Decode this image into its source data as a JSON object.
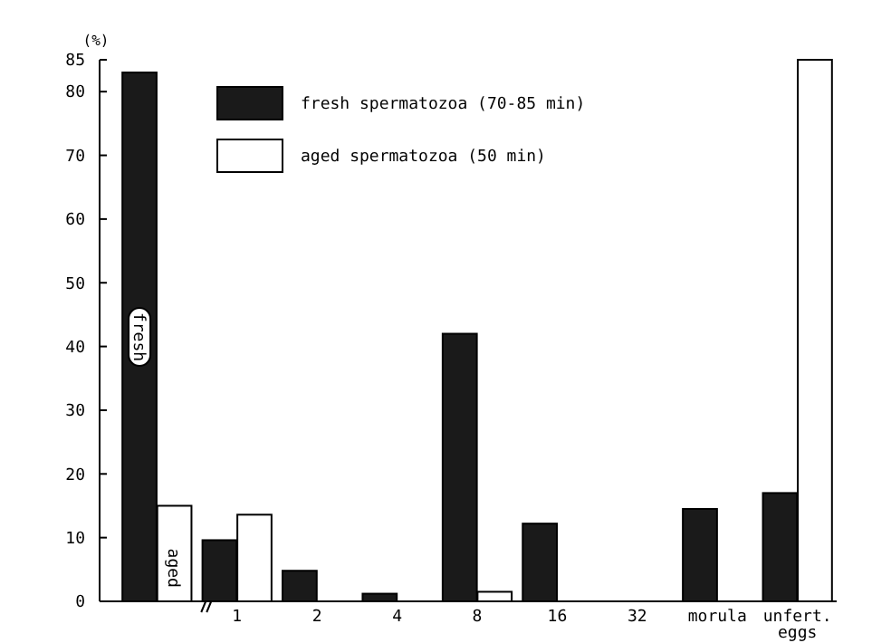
{
  "chart_data": {
    "type": "bar",
    "ylabel": "(%)",
    "categories": [
      null,
      "1",
      "2",
      "4",
      "8",
      "16",
      "32",
      "morula",
      "unfert. eggs"
    ],
    "series": [
      {
        "name": "fresh spermatozoa (70-85 min)",
        "color": "#1a1a1a",
        "values": [
          83,
          9.6,
          4.8,
          1.2,
          42,
          12.2,
          0,
          14.5,
          17
        ]
      },
      {
        "name": "aged spermatozoa (50 min)",
        "color": "#ffffff",
        "values": [
          15,
          13.6,
          0,
          0,
          1.5,
          0,
          0,
          0,
          85
        ]
      }
    ],
    "ylim": [
      0,
      85
    ],
    "yticks": [
      0,
      10,
      20,
      30,
      40,
      50,
      60,
      70,
      80,
      85
    ],
    "annotations": [
      "fresh",
      "aged"
    ],
    "legend": "top",
    "grid": false
  }
}
